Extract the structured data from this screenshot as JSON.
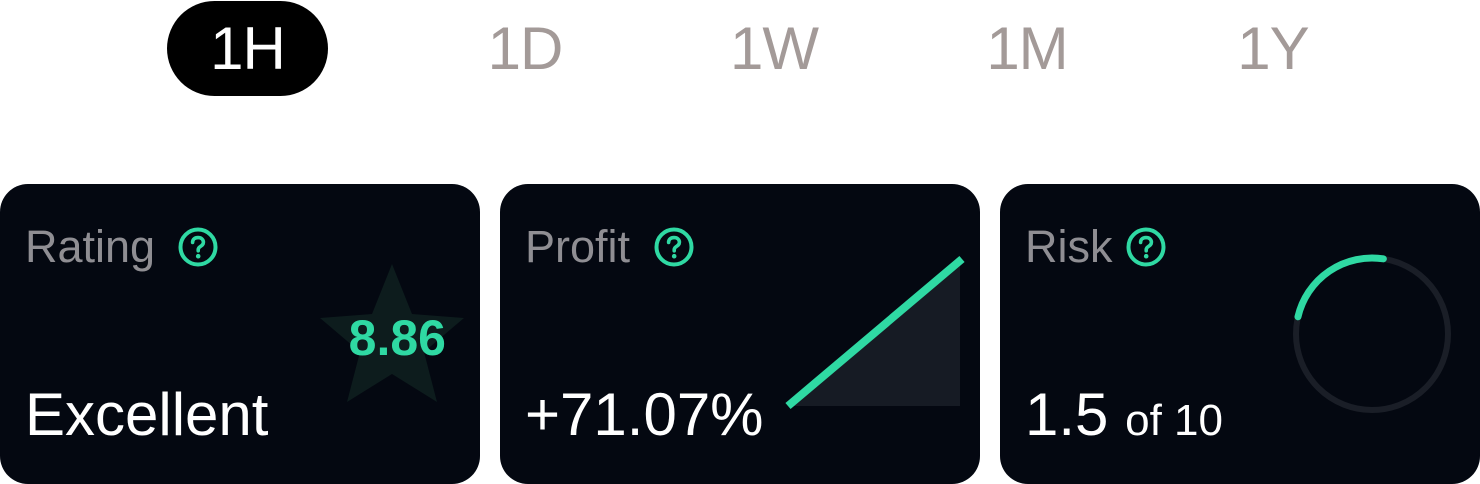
{
  "tabs": [
    {
      "label": "1H",
      "active": true
    },
    {
      "label": "1D",
      "active": false
    },
    {
      "label": "1W",
      "active": false
    },
    {
      "label": "1M",
      "active": false
    },
    {
      "label": "1Y",
      "active": false
    }
  ],
  "cards": {
    "rating": {
      "title": "Rating",
      "value": "8.86",
      "label": "Excellent"
    },
    "profit": {
      "title": "Profit",
      "value": "+71.07%"
    },
    "risk": {
      "title": "Risk",
      "value": "1.5",
      "suffix": "of 10",
      "score": 1.5,
      "max": 10
    }
  },
  "colors": {
    "accent": "#2fd9a3",
    "card_bg": "#040811",
    "muted_text": "#8f8e93",
    "tab_inactive": "#a39a98",
    "tab_active_bg": "#000000"
  }
}
